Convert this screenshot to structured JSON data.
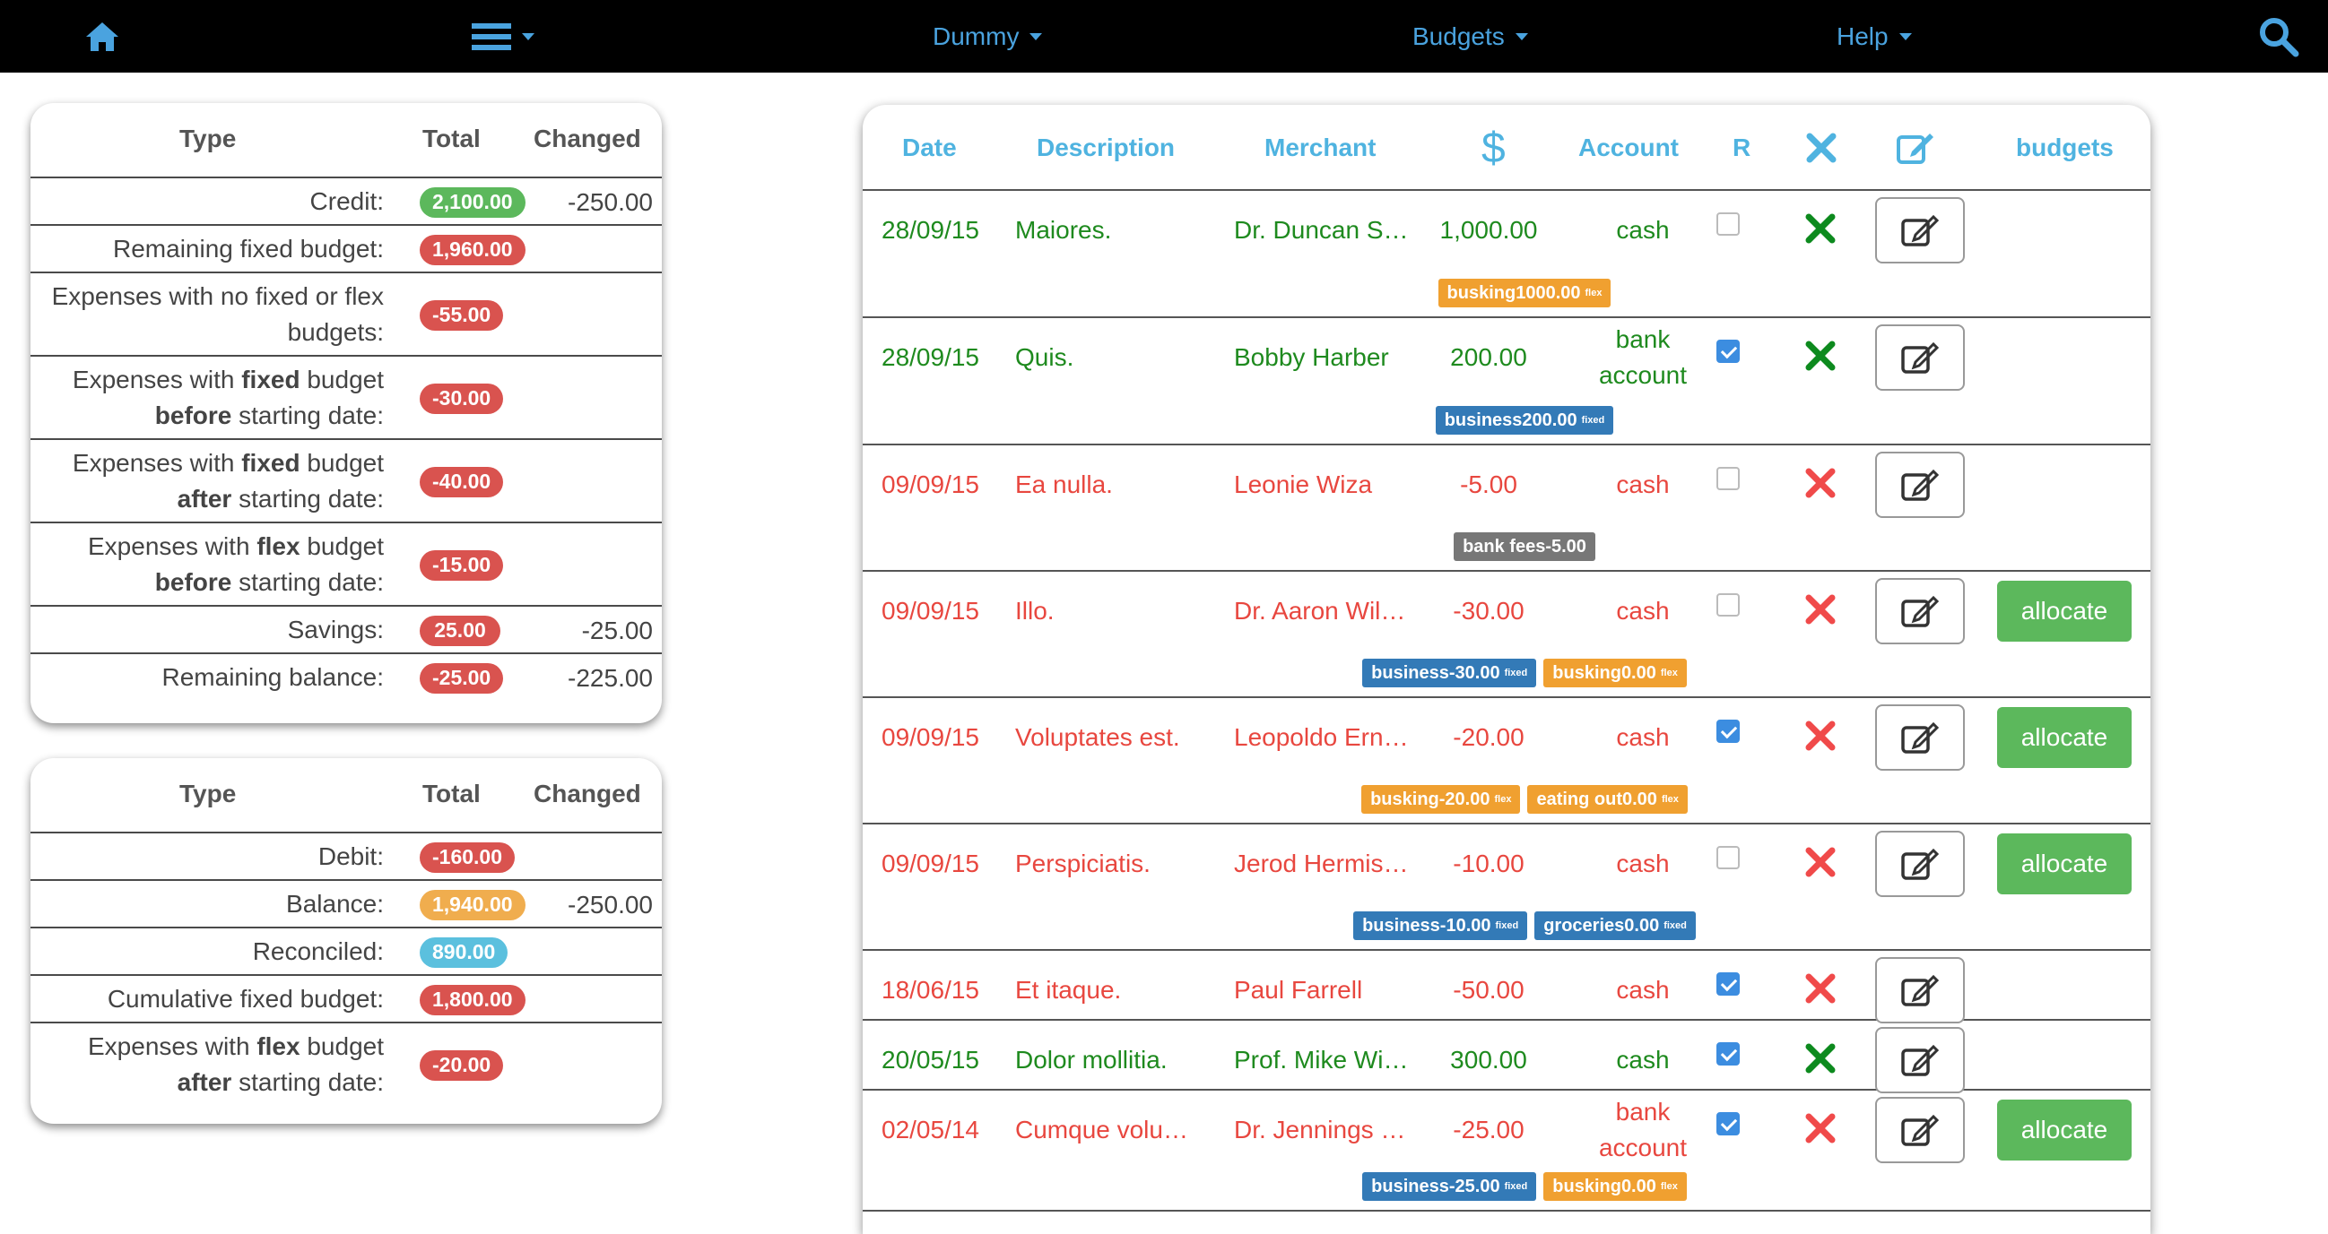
{
  "navbar": {
    "menus": [
      "Dummy",
      "Budgets",
      "Help"
    ],
    "icons": [
      "home-icon",
      "bars-icon",
      "search-icon"
    ],
    "link_color": "#4aa3df"
  },
  "summary1": {
    "headers": {
      "type": "Type",
      "total": "Total",
      "changed": "Changed"
    },
    "rows": [
      {
        "label": "Credit:",
        "total": "2,100.00",
        "changed": "-250.00",
        "color": "green"
      },
      {
        "label": "Remaining fixed budget:",
        "total": "1,960.00",
        "changed": "",
        "color": "red"
      },
      {
        "label": "Expenses with no fixed or flex budgets:",
        "total": "-55.00",
        "changed": "",
        "color": "red"
      },
      {
        "label": "Expenses with fixed budget before starting date:",
        "total": "-30.00",
        "changed": "",
        "color": "red"
      },
      {
        "label": "Expenses with fixed budget after starting date:",
        "total": "-40.00",
        "changed": "",
        "color": "red"
      },
      {
        "label": "Expenses with flex budget before starting date:",
        "total": "-15.00",
        "changed": "",
        "color": "red"
      },
      {
        "label": "Savings:",
        "total": "25.00",
        "changed": "-25.00",
        "color": "red"
      },
      {
        "label": "Remaining balance:",
        "total": "-25.00",
        "changed": "-225.00",
        "color": "red"
      }
    ]
  },
  "summary2": {
    "headers": {
      "type": "Type",
      "total": "Total",
      "changed": "Changed"
    },
    "rows": [
      {
        "label": "Debit:",
        "total": "-160.00",
        "changed": "",
        "color": "red"
      },
      {
        "label": "Balance:",
        "total": "1,940.00",
        "changed": "-250.00",
        "color": "orange"
      },
      {
        "label": "Reconciled:",
        "total": "890.00",
        "changed": "",
        "color": "blue"
      },
      {
        "label": "Cumulative fixed budget:",
        "total": "1,800.00",
        "changed": "",
        "color": "red"
      },
      {
        "label": "Expenses with flex budget after starting date:",
        "total": "-20.00",
        "changed": "",
        "color": "red"
      }
    ]
  },
  "transactions": {
    "headers": {
      "date": "Date",
      "description": "Description",
      "merchant": "Merchant",
      "amount": "$",
      "account": "Account",
      "reconciled": "R",
      "budgets": "budgets"
    },
    "allocate_label": "allocate",
    "rows": [
      {
        "date": "28/09/15",
        "description": "Maiores.",
        "merchant": "Dr. Duncan S…",
        "amount": "1,000.00",
        "account": "cash",
        "reconciled": false,
        "positive": true,
        "allocate": false,
        "tags": [
          {
            "name": "busking",
            "amount": "1000.00",
            "type": "flex",
            "kind": "flex"
          }
        ]
      },
      {
        "date": "28/09/15",
        "description": "Quis.",
        "merchant": "Bobby Harber",
        "amount": "200.00",
        "account": "bank account",
        "reconciled": true,
        "positive": true,
        "allocate": false,
        "tags": [
          {
            "name": "business",
            "amount": "200.00",
            "type": "fixed",
            "kind": "fixed"
          }
        ]
      },
      {
        "date": "09/09/15",
        "description": "Ea nulla.",
        "merchant": "Leonie Wiza",
        "amount": "-5.00",
        "account": "cash",
        "reconciled": false,
        "positive": false,
        "allocate": false,
        "tags": [
          {
            "name": "bank fees",
            "amount": "-5.00",
            "type": "",
            "kind": "none"
          }
        ]
      },
      {
        "date": "09/09/15",
        "description": "Illo.",
        "merchant": "Dr. Aaron Wil…",
        "amount": "-30.00",
        "account": "cash",
        "reconciled": false,
        "positive": false,
        "allocate": true,
        "tags": [
          {
            "name": "business",
            "amount": "-30.00",
            "type": "fixed",
            "kind": "fixed"
          },
          {
            "name": "busking",
            "amount": "0.00",
            "type": "flex",
            "kind": "flex"
          }
        ]
      },
      {
        "date": "09/09/15",
        "description": "Voluptates est.",
        "merchant": "Leopoldo Ern…",
        "amount": "-20.00",
        "account": "cash",
        "reconciled": true,
        "positive": false,
        "allocate": true,
        "tags": [
          {
            "name": "busking",
            "amount": "-20.00",
            "type": "flex",
            "kind": "flex"
          },
          {
            "name": "eating out",
            "amount": "0.00",
            "type": "flex",
            "kind": "flex"
          }
        ]
      },
      {
        "date": "09/09/15",
        "description": "Perspiciatis.",
        "merchant": "Jerod Hermis…",
        "amount": "-10.00",
        "account": "cash",
        "reconciled": false,
        "positive": false,
        "allocate": true,
        "tags": [
          {
            "name": "business",
            "amount": "-10.00",
            "type": "fixed",
            "kind": "fixed"
          },
          {
            "name": "groceries",
            "amount": "0.00",
            "type": "fixed",
            "kind": "fixed"
          }
        ]
      },
      {
        "date": "18/06/15",
        "description": "Et itaque.",
        "merchant": "Paul Farrell",
        "amount": "-50.00",
        "account": "cash",
        "reconciled": true,
        "positive": false,
        "allocate": false,
        "tags": []
      },
      {
        "date": "20/05/15",
        "description": "Dolor mollitia.",
        "merchant": "Prof. Mike Wil…",
        "amount": "300.00",
        "account": "cash",
        "reconciled": true,
        "positive": true,
        "allocate": false,
        "tags": []
      },
      {
        "date": "02/05/14",
        "description": "Cumque volu…",
        "merchant": "Dr. Jennings …",
        "amount": "-25.00",
        "account": "bank account",
        "reconciled": true,
        "positive": false,
        "allocate": true,
        "tags": [
          {
            "name": "business",
            "amount": "-25.00",
            "type": "fixed",
            "kind": "fixed"
          },
          {
            "name": "busking",
            "amount": "0.00",
            "type": "flex",
            "kind": "flex"
          }
        ]
      }
    ]
  }
}
